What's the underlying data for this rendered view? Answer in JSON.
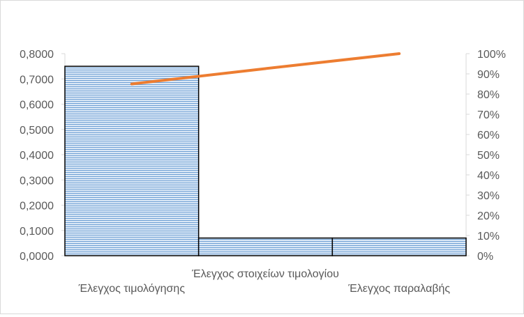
{
  "chart_data": {
    "type": "bar",
    "categories": [
      "Έλεγχος τιμολόγησης",
      "Έλεγχος στοιχείων τιμολογίου",
      "Έλεγχος παραλαβής"
    ],
    "series": [
      {
        "type": "bar",
        "axis": "primary",
        "values": [
          0.75,
          0.07,
          0.07
        ]
      },
      {
        "type": "line",
        "axis": "secondary",
        "values": [
          0.85,
          0.926,
          1.0
        ]
      }
    ],
    "y_primary": {
      "min": 0,
      "max": 0.8,
      "ticks": [
        "0,0000",
        "0,1000",
        "0,2000",
        "0,3000",
        "0,4000",
        "0,5000",
        "0,6000",
        "0,7000",
        "0,8000"
      ]
    },
    "y_secondary": {
      "min": 0,
      "max": 1.0,
      "ticks": [
        "0%",
        "10%",
        "20%",
        "30%",
        "40%",
        "50%",
        "60%",
        "70%",
        "80%",
        "90%",
        "100%"
      ]
    },
    "bar_gap": "none",
    "grid": false,
    "legend": "none",
    "colors": {
      "bar_fill": "#dbe8f6",
      "bar_stripe": "#6fa0d4",
      "bar_edge": "#000000",
      "line": "#ed7d31",
      "axis": "#d9d9d9",
      "text": "#595959"
    }
  }
}
